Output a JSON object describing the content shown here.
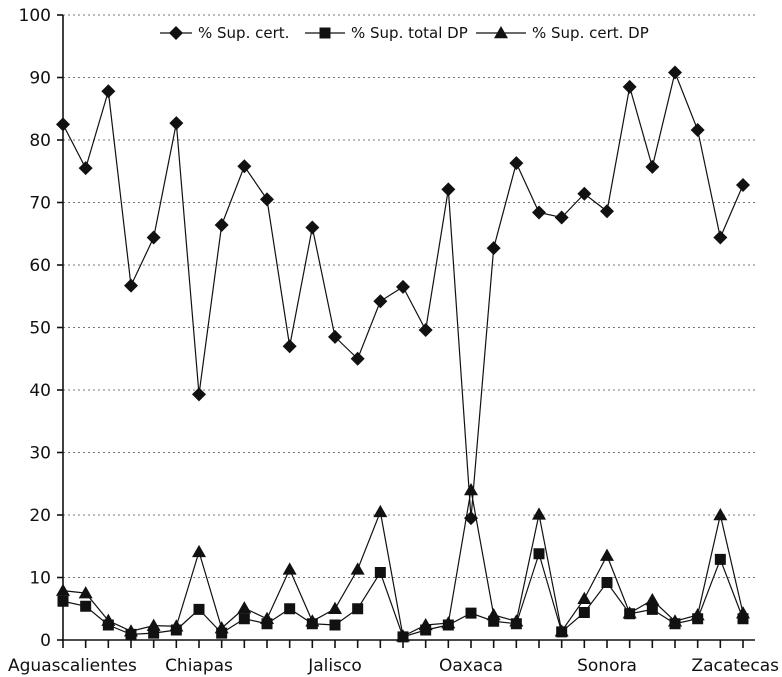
{
  "chart_data": {
    "type": "line",
    "title": "",
    "xlabel": "",
    "ylabel": "",
    "ylim": [
      0,
      100
    ],
    "yticks": [
      0,
      10,
      20,
      30,
      40,
      50,
      60,
      70,
      80,
      90,
      100
    ],
    "grid": "horizontal dotted",
    "legend_position": "top",
    "x_tick_labels": [
      {
        "index": 0,
        "label": "Aguascalientes"
      },
      {
        "index": 6,
        "label": "Chiapas"
      },
      {
        "index": 12,
        "label": "Jalisco"
      },
      {
        "index": 18,
        "label": "Oaxaca"
      },
      {
        "index": 24,
        "label": "Sonora"
      },
      {
        "index": 30,
        "label": "Zacatecas"
      }
    ],
    "n_points": 31,
    "series": [
      {
        "name": "% Sup. cert.",
        "marker": "diamond",
        "values": [
          82.5,
          75.5,
          87.8,
          56.7,
          64.4,
          82.7,
          39.3,
          66.4,
          75.8,
          70.5,
          47.0,
          66.0,
          48.5,
          45.0,
          54.2,
          56.5,
          49.6,
          72.1,
          19.5,
          62.7,
          76.3,
          68.4,
          67.6,
          71.4,
          68.6,
          88.5,
          75.7,
          90.8,
          81.6,
          64.4,
          72.8
        ]
      },
      {
        "name": "% Sup. total DP",
        "marker": "square",
        "values": [
          6.2,
          5.4,
          2.4,
          0.9,
          1.1,
          1.6,
          4.9,
          1.1,
          3.4,
          2.6,
          5.0,
          2.6,
          2.4,
          5.0,
          10.8,
          0.5,
          1.6,
          2.4,
          4.3,
          3.0,
          2.6,
          13.8,
          1.3,
          4.4,
          9.2,
          4.2,
          4.9,
          2.6,
          3.4,
          12.9,
          3.4
        ]
      },
      {
        "name": "% Sup. cert. DP",
        "marker": "triangle",
        "values": [
          7.9,
          7.5,
          3.1,
          1.4,
          2.3,
          2.2,
          14.1,
          1.9,
          5.1,
          3.4,
          11.3,
          3.0,
          5.0,
          11.3,
          20.5,
          0.6,
          2.4,
          2.7,
          24.0,
          4.0,
          3.0,
          20.1,
          1.4,
          6.6,
          13.5,
          4.3,
          6.4,
          3.0,
          4.0,
          20.0,
          4.3
        ]
      }
    ]
  }
}
